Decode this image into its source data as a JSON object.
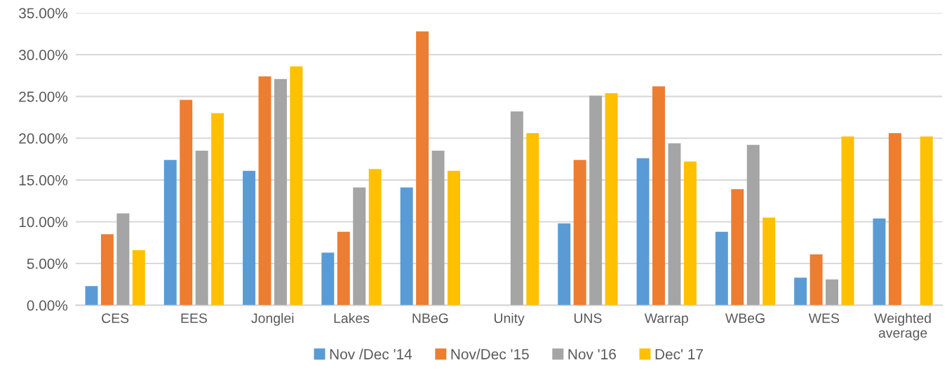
{
  "chart_data": {
    "type": "bar",
    "categories": [
      "CES",
      "EES",
      "Jonglei",
      "Lakes",
      "NBeG",
      "Unity",
      "UNS",
      "Warrap",
      "WBeG",
      "WES",
      "Weighted\naverage"
    ],
    "series": [
      {
        "name": "Nov /Dec '14",
        "color": "#5b9bd5",
        "values": [
          2.3,
          17.4,
          16.1,
          6.3,
          14.1,
          null,
          9.8,
          17.6,
          8.8,
          3.3,
          10.4
        ]
      },
      {
        "name": "Nov/Dec '15",
        "color": "#ed7d31",
        "values": [
          8.5,
          24.6,
          27.4,
          8.8,
          32.8,
          null,
          17.4,
          26.2,
          13.9,
          6.1,
          20.6
        ]
      },
      {
        "name": "Nov '16",
        "color": "#a5a5a5",
        "values": [
          11.0,
          18.5,
          27.1,
          14.1,
          18.5,
          23.2,
          25.1,
          19.4,
          19.2,
          3.1,
          null
        ]
      },
      {
        "name": "Dec' 17",
        "color": "#ffc000",
        "values": [
          6.6,
          23.0,
          28.6,
          16.3,
          16.1,
          20.6,
          25.4,
          17.2,
          10.5,
          20.2,
          20.2
        ]
      }
    ],
    "ylim": [
      0,
      35
    ],
    "yticks": [
      {
        "value": 0,
        "label": "0.00%"
      },
      {
        "value": 5,
        "label": "5.00%"
      },
      {
        "value": 10,
        "label": "10.00%"
      },
      {
        "value": 15,
        "label": "15.00%"
      },
      {
        "value": 20,
        "label": "20.00%"
      },
      {
        "value": 25,
        "label": "25.00%"
      },
      {
        "value": 30,
        "label": "30.00%"
      },
      {
        "value": 35,
        "label": "35.00%"
      }
    ],
    "grid": "y",
    "legend": "bottom"
  }
}
